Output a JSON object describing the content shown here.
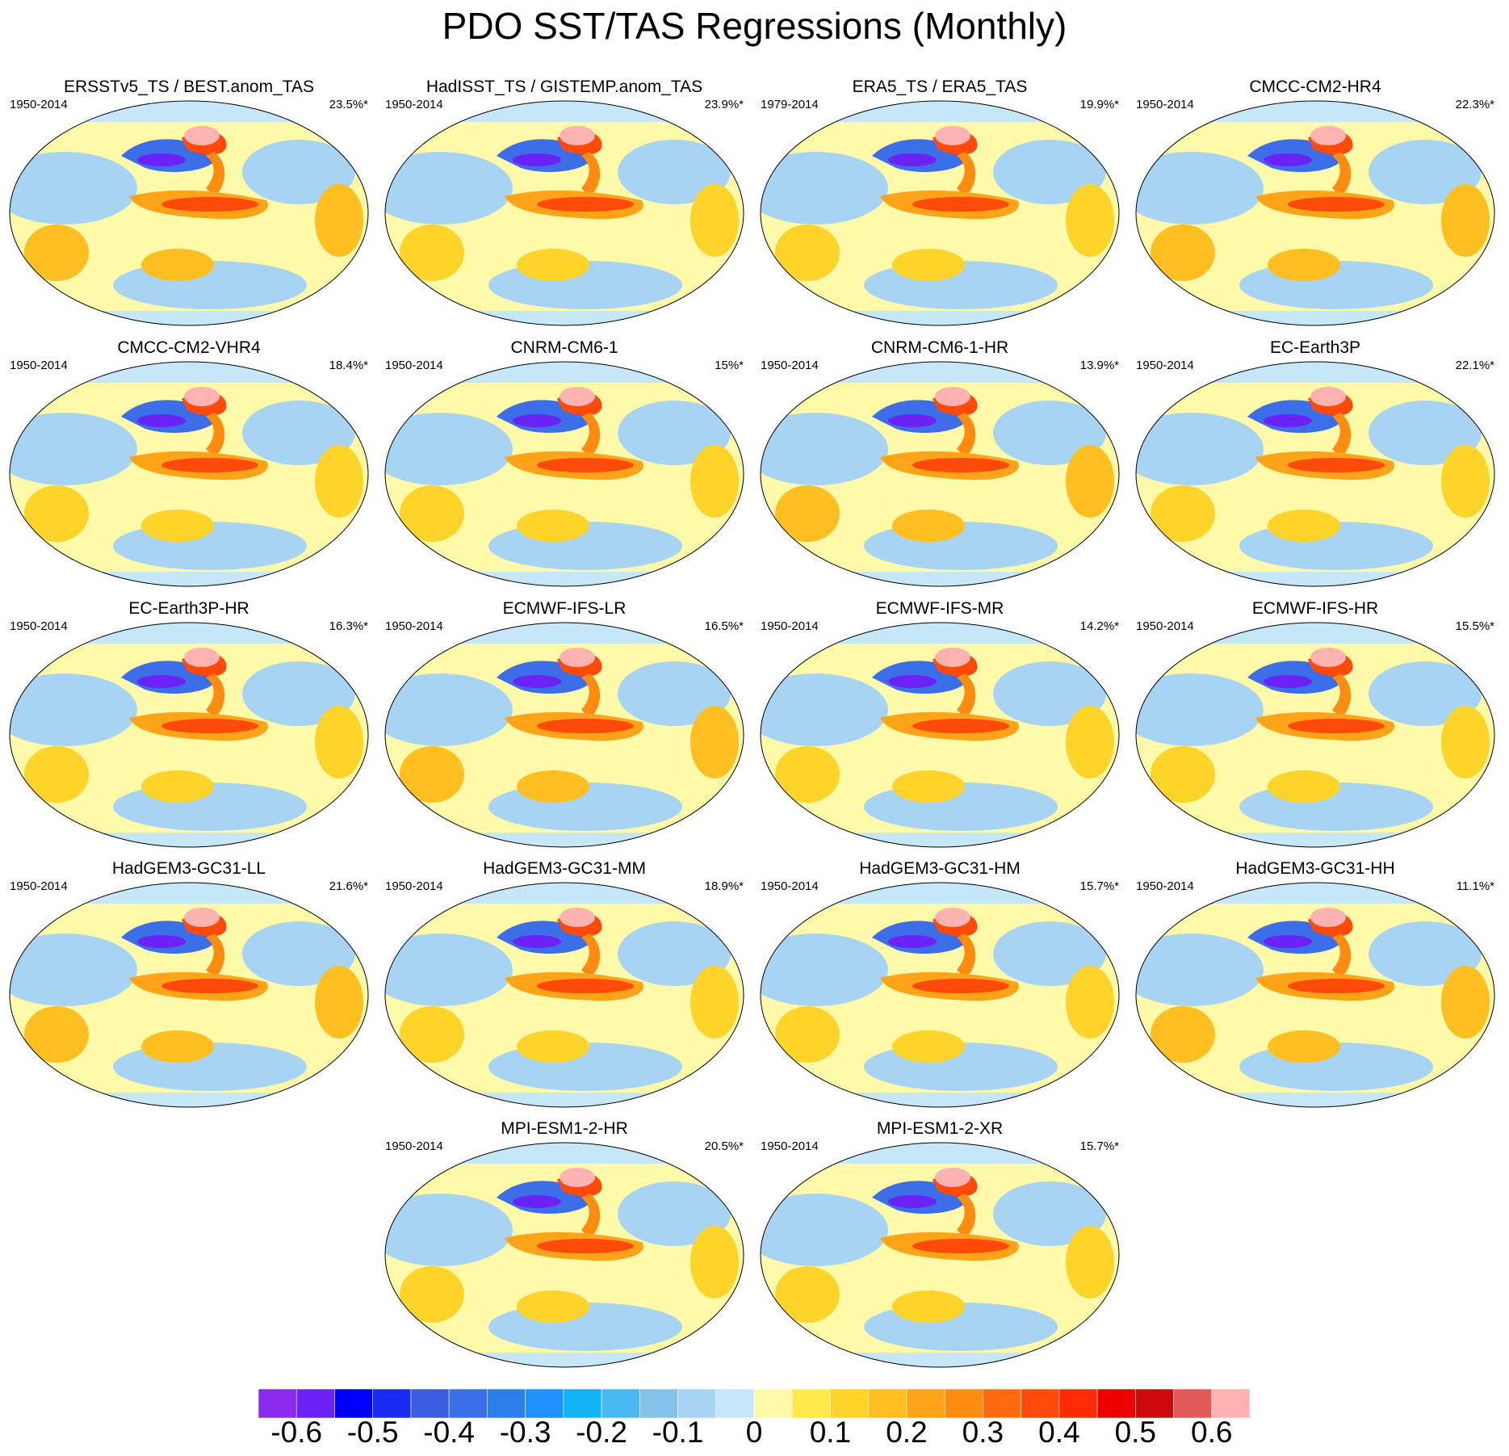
{
  "title": "PDO SST/TAS Regressions (Monthly)",
  "panels": [
    {
      "title": "ERSSTv5_TS / BEST.anom_TAS",
      "years": "1950-2014",
      "pct": "23.5%*"
    },
    {
      "title": "HadISST_TS / GISTEMP.anom_TAS",
      "years": "1950-2014",
      "pct": "23.9%*"
    },
    {
      "title": "ERA5_TS / ERA5_TAS",
      "years": "1979-2014",
      "pct": "19.9%*"
    },
    {
      "title": "CMCC-CM2-HR4",
      "years": "1950-2014",
      "pct": "22.3%*"
    },
    {
      "title": "CMCC-CM2-VHR4",
      "years": "1950-2014",
      "pct": "18.4%*"
    },
    {
      "title": "CNRM-CM6-1",
      "years": "1950-2014",
      "pct": "15%*"
    },
    {
      "title": "CNRM-CM6-1-HR",
      "years": "1950-2014",
      "pct": "13.9%*"
    },
    {
      "title": "EC-Earth3P",
      "years": "1950-2014",
      "pct": "22.1%*"
    },
    {
      "title": "EC-Earth3P-HR",
      "years": "1950-2014",
      "pct": "16.3%*"
    },
    {
      "title": "ECMWF-IFS-LR",
      "years": "1950-2014",
      "pct": "16.5%*"
    },
    {
      "title": "ECMWF-IFS-MR",
      "years": "1950-2014",
      "pct": "14.2%*"
    },
    {
      "title": "ECMWF-IFS-HR",
      "years": "1950-2014",
      "pct": "15.5%*"
    },
    {
      "title": "HadGEM3-GC31-LL",
      "years": "1950-2014",
      "pct": "21.6%*"
    },
    {
      "title": "HadGEM3-GC31-MM",
      "years": "1950-2014",
      "pct": "18.9%*"
    },
    {
      "title": "HadGEM3-GC31-HM",
      "years": "1950-2014",
      "pct": "15.7%*"
    },
    {
      "title": "HadGEM3-GC31-HH",
      "years": "1950-2014",
      "pct": "11.1%*"
    },
    {
      "title": "MPI-ESM1-2-HR",
      "years": "1950-2014",
      "pct": "20.5%*"
    },
    {
      "title": "MPI-ESM1-2-XR",
      "years": "1950-2014",
      "pct": "15.7%*"
    }
  ],
  "colorbar": {
    "colors": [
      "#8a2bee",
      "#6a22f5",
      "#0000ff",
      "#1a2cf0",
      "#3b5ee0",
      "#3c6ee8",
      "#2d7fe8",
      "#1e90ff",
      "#12b4f5",
      "#4ab8f0",
      "#85c2ea",
      "#a7d4f2",
      "#c6e7f8",
      "#fffaaa",
      "#ffe84a",
      "#ffd42a",
      "#ffbf20",
      "#ffa418",
      "#ff8c10",
      "#ff6a10",
      "#ff4a0a",
      "#ff2a06",
      "#ee0000",
      "#cc0a0a",
      "#e05a5a",
      "#ffb2b2"
    ],
    "labels": [
      "-0.6",
      "-0.5",
      "-0.4",
      "-0.3",
      "-0.2",
      "-0.1",
      "0",
      "0.1",
      "0.2",
      "0.3",
      "0.4",
      "0.5",
      "0.6"
    ]
  }
}
